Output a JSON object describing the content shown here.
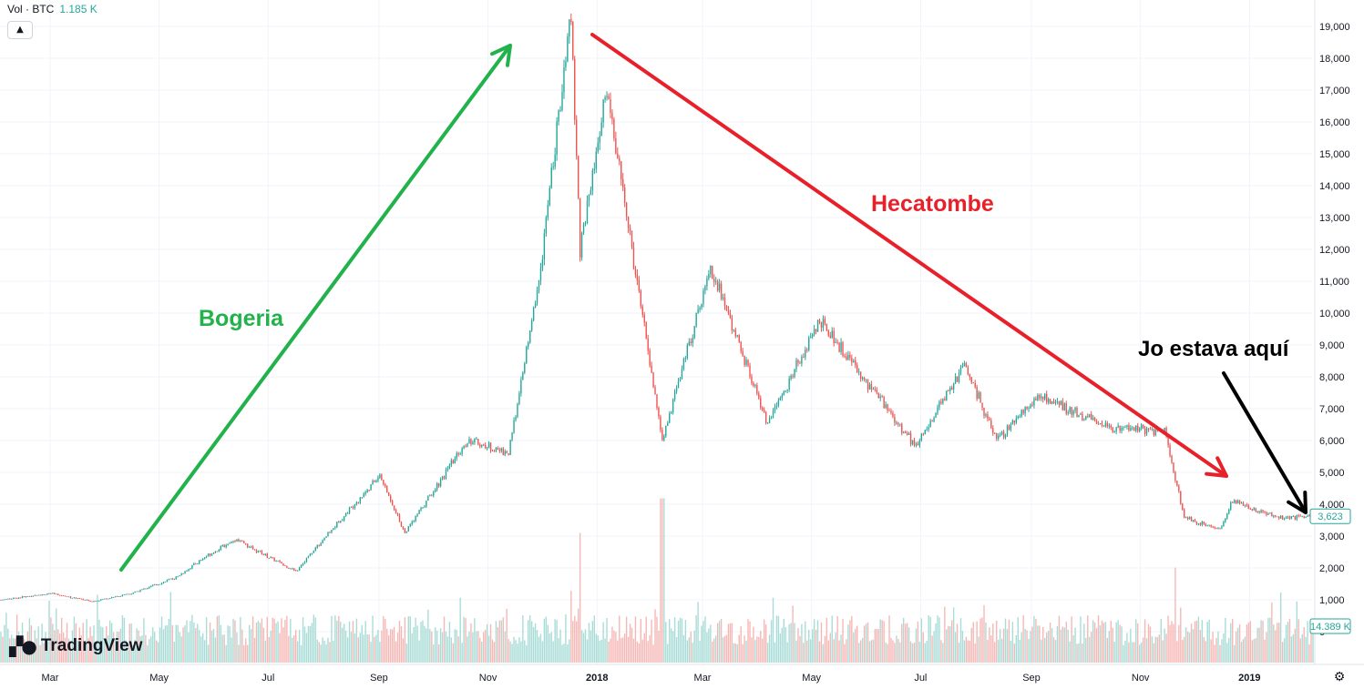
{
  "legend": {
    "label": "Vol · BTC",
    "value": "1.185 K"
  },
  "collapse_icon": "chevron-up-icon",
  "branding": {
    "mark": "17",
    "name": "TradingView"
  },
  "settings_icon": "gear-icon",
  "colors": {
    "up": "#26a69a",
    "down": "#ef5350",
    "vol_up": "#a8dcd6",
    "vol_down": "#f6b7b4",
    "green_arrow": "#22b24c",
    "red_arrow": "#e8202a",
    "black_arrow": "#000000"
  },
  "annotations": [
    {
      "text": "Bogeria",
      "color": "#22b24c"
    },
    {
      "text": "Hecatombe",
      "color": "#e8202a"
    },
    {
      "text": "Jo estava aquí",
      "color": "#000000"
    }
  ],
  "chart_data": {
    "type": "candlestick",
    "instrument": "BTC",
    "x_ticks": [
      "Mar",
      "May",
      "Jul",
      "Sep",
      "Nov",
      "2018",
      "Mar",
      "May",
      "Jul",
      "Sep",
      "Nov",
      "2019"
    ],
    "y_ticks": [
      "0",
      "1,000",
      "2,000",
      "3,000",
      "4,000",
      "5,000",
      "6,000",
      "7,000",
      "8,000",
      "9,000",
      "10,000",
      "11,000",
      "12,000",
      "13,000",
      "14,000",
      "15,000",
      "16,000",
      "17,000",
      "18,000",
      "19,000"
    ],
    "ylim": [
      0,
      19500
    ],
    "x_range": [
      "2017-02-01",
      "2019-02-05"
    ],
    "last_price_label": "3,623",
    "last_volume_label": "14.389 K",
    "price_path": [
      [
        "2017-02-01",
        1000
      ],
      [
        "2017-03-01",
        1200
      ],
      [
        "2017-03-24",
        950
      ],
      [
        "2017-04-15",
        1200
      ],
      [
        "2017-05-10",
        1700
      ],
      [
        "2017-05-25",
        2300
      ],
      [
        "2017-06-12",
        2900
      ],
      [
        "2017-07-16",
        1900
      ],
      [
        "2017-08-05",
        3200
      ],
      [
        "2017-09-01",
        4900
      ],
      [
        "2017-09-15",
        3100
      ],
      [
        "2017-10-20",
        6000
      ],
      [
        "2017-11-12",
        5600
      ],
      [
        "2017-11-29",
        11000
      ],
      [
        "2017-12-17",
        19400
      ],
      [
        "2017-12-22",
        12000
      ],
      [
        "2018-01-06",
        17000
      ],
      [
        "2018-02-06",
        6000
      ],
      [
        "2018-03-05",
        11500
      ],
      [
        "2018-04-06",
        6500
      ],
      [
        "2018-05-05",
        9800
      ],
      [
        "2018-06-28",
        5800
      ],
      [
        "2018-07-25",
        8400
      ],
      [
        "2018-08-12",
        6000
      ],
      [
        "2018-09-05",
        7400
      ],
      [
        "2018-10-15",
        6400
      ],
      [
        "2018-11-14",
        6300
      ],
      [
        "2018-11-25",
        3600
      ],
      [
        "2018-12-15",
        3200
      ],
      [
        "2018-12-22",
        4100
      ],
      [
        "2019-01-15",
        3600
      ],
      [
        "2019-02-05",
        3623
      ]
    ],
    "volume_ylim": [
      0,
      20000
    ]
  }
}
